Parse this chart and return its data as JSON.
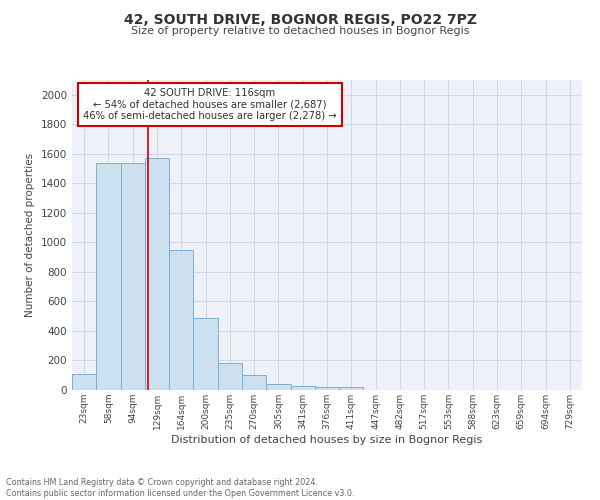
{
  "title1": "42, SOUTH DRIVE, BOGNOR REGIS, PO22 7PZ",
  "title2": "Size of property relative to detached houses in Bognor Regis",
  "xlabel": "Distribution of detached houses by size in Bognor Regis",
  "ylabel": "Number of detached properties",
  "footnote": "Contains HM Land Registry data © Crown copyright and database right 2024.\nContains public sector information licensed under the Open Government Licence v3.0.",
  "bar_labels": [
    "23sqm",
    "58sqm",
    "94sqm",
    "129sqm",
    "164sqm",
    "200sqm",
    "235sqm",
    "270sqm",
    "305sqm",
    "341sqm",
    "376sqm",
    "411sqm",
    "447sqm",
    "482sqm",
    "517sqm",
    "553sqm",
    "588sqm",
    "623sqm",
    "659sqm",
    "694sqm",
    "729sqm"
  ],
  "bar_values": [
    110,
    1540,
    1540,
    1575,
    950,
    490,
    180,
    100,
    40,
    25,
    20,
    20,
    0,
    0,
    0,
    0,
    0,
    0,
    0,
    0,
    0
  ],
  "bar_color": "#cce0f0",
  "bar_edge_color": "#7ab0d4",
  "grid_color": "#d0d8e8",
  "bg_color": "#eef2f8",
  "annotation_text": "42 SOUTH DRIVE: 116sqm\n← 54% of detached houses are smaller (2,687)\n46% of semi-detached houses are larger (2,278) →",
  "annotation_box_color": "#ffffff",
  "annotation_box_edge": "#cc0000",
  "vline_color": "#cc0000",
  "ylim": [
    0,
    2100
  ],
  "yticks": [
    0,
    200,
    400,
    600,
    800,
    1000,
    1200,
    1400,
    1600,
    1800,
    2000
  ],
  "property_sqm": 116
}
